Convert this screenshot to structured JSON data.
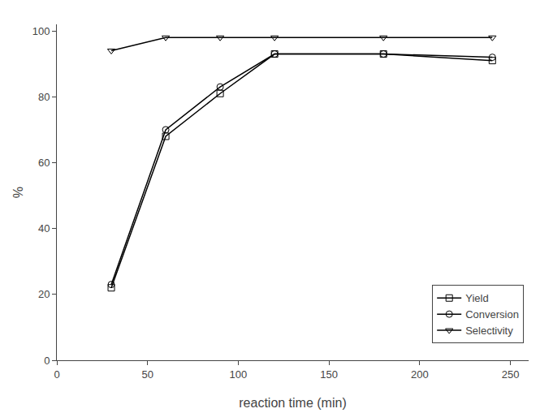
{
  "chart_data": {
    "type": "line",
    "x": [
      30,
      60,
      90,
      120,
      180,
      240
    ],
    "series": [
      {
        "name": "Yield",
        "color": "#000000",
        "marker": "square",
        "values": [
          22,
          68,
          81,
          93,
          93,
          91
        ]
      },
      {
        "name": "Conversion",
        "color": "#000000",
        "marker": "circle",
        "values": [
          23,
          70,
          83,
          93,
          93,
          92
        ]
      },
      {
        "name": "Selectivity",
        "color": "#000000",
        "marker": "triangle-down",
        "values": [
          94,
          98,
          98,
          98,
          98,
          98
        ]
      }
    ],
    "xlabel": "reaction time (min)",
    "ylabel": "%",
    "xlim": [
      0,
      260
    ],
    "ylim": [
      0,
      102
    ],
    "xticks": [
      0,
      50,
      100,
      150,
      200,
      250
    ],
    "yticks": [
      0,
      20,
      40,
      60,
      80,
      100
    ],
    "grid": false,
    "legend": "lower right"
  }
}
